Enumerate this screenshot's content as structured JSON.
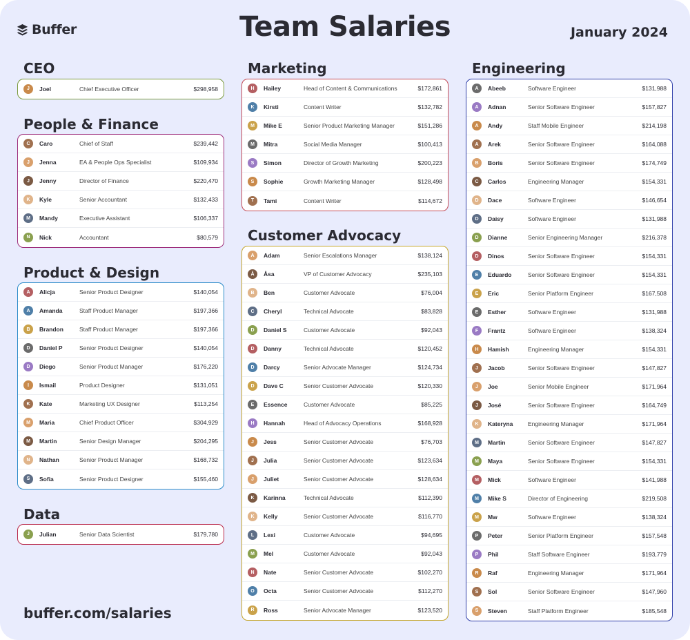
{
  "header": {
    "brand": "Buffer",
    "title": "Team Salaries",
    "date": "January 2024"
  },
  "footer": {
    "url": "buffer.com/salaries"
  },
  "sections": [
    {
      "title": "CEO",
      "color": "#7a9a3e",
      "rows": [
        {
          "name": "Joel",
          "role": "Chief Executive Officer",
          "salary": "$298,958"
        }
      ]
    },
    {
      "title": "People & Finance",
      "color": "#9c2c7a",
      "rows": [
        {
          "name": "Caro",
          "role": "Chief of Staff",
          "salary": "$239,442"
        },
        {
          "name": "Jenna",
          "role": "EA & People Ops Specialist",
          "salary": "$109,934"
        },
        {
          "name": "Jenny",
          "role": "Director of Finance",
          "salary": "$220,470"
        },
        {
          "name": "Kyle",
          "role": "Senior Accountant",
          "salary": "$132,433"
        },
        {
          "name": "Mandy",
          "role": "Executive Assistant",
          "salary": "$106,337"
        },
        {
          "name": "Nick",
          "role": "Accountant",
          "salary": "$80,579"
        }
      ]
    },
    {
      "title": "Product & Design",
      "color": "#2a8ac8",
      "rows": [
        {
          "name": "Alicja",
          "role": "Senior Product Designer",
          "salary": "$140,054"
        },
        {
          "name": "Amanda",
          "role": "Staff Product Manager",
          "salary": "$197,366"
        },
        {
          "name": "Brandon",
          "role": "Staff Product Manager",
          "salary": "$197,366"
        },
        {
          "name": "Daniel P",
          "role": "Senior Product Designer",
          "salary": "$140,054"
        },
        {
          "name": "Diego",
          "role": "Senior Product Manager",
          "salary": "$176,220"
        },
        {
          "name": "Ismail",
          "role": "Product Designer",
          "salary": "$131,051"
        },
        {
          "name": "Kate",
          "role": "Marketing UX Designer",
          "salary": "$113,254"
        },
        {
          "name": "Maria",
          "role": "Chief Product Officer",
          "salary": "$304,929"
        },
        {
          "name": "Martin",
          "role": "Senior Design Manager",
          "salary": "$204,295"
        },
        {
          "name": "Nathan",
          "role": "Senior Product Manager",
          "salary": "$168,732"
        },
        {
          "name": "Sofia",
          "role": "Senior Product Designer",
          "salary": "$155,460"
        }
      ]
    },
    {
      "title": "Data",
      "color": "#b8284a",
      "rows": [
        {
          "name": "Julian",
          "role": "Senior Data Scientist",
          "salary": "$179,780"
        }
      ]
    },
    {
      "title": "Marketing",
      "color": "#c24a55",
      "rows": [
        {
          "name": "Hailey",
          "role": "Head of Content & Communications",
          "salary": "$172,861"
        },
        {
          "name": "Kirsti",
          "role": "Content Writer",
          "salary": "$132,782"
        },
        {
          "name": "Mike E",
          "role": "Senior Product Marketing Manager",
          "salary": "$151,286"
        },
        {
          "name": "Mitra",
          "role": "Social Media Manager",
          "salary": "$100,413"
        },
        {
          "name": "Simon",
          "role": "Director of Growth Marketing",
          "salary": "$200,223"
        },
        {
          "name": "Sophie",
          "role": "Growth Marketing Manager",
          "salary": "$128,498"
        },
        {
          "name": "Tami",
          "role": "Content Writer",
          "salary": "$114,672"
        }
      ]
    },
    {
      "title": "Customer Advocacy",
      "color": "#c4a52a",
      "rows": [
        {
          "name": "Adam",
          "role": "Senior Escalations Manager",
          "salary": "$138,124"
        },
        {
          "name": "Åsa",
          "role": "VP of Customer Advocacy",
          "salary": "$235,103"
        },
        {
          "name": "Ben",
          "role": "Customer Advocate",
          "salary": "$76,004"
        },
        {
          "name": "Cheryl",
          "role": "Technical Advocate",
          "salary": "$83,828"
        },
        {
          "name": "Daniel S",
          "role": "Customer Advocate",
          "salary": "$92,043"
        },
        {
          "name": "Danny",
          "role": "Technical Advocate",
          "salary": "$120,452"
        },
        {
          "name": "Darcy",
          "role": "Senior Advocate Manager",
          "salary": "$124,734"
        },
        {
          "name": "Dave C",
          "role": "Senior Customer Advocate",
          "salary": "$120,330"
        },
        {
          "name": "Essence",
          "role": "Customer Advocate",
          "salary": "$85,225"
        },
        {
          "name": "Hannah",
          "role": "Head of Advocacy Operations",
          "salary": "$168,928"
        },
        {
          "name": "Jess",
          "role": "Senior Customer Advocate",
          "salary": "$76,703"
        },
        {
          "name": "Julia",
          "role": "Senior Customer Advocate",
          "salary": "$123,634"
        },
        {
          "name": "Juliet",
          "role": "Senior Customer Advocate",
          "salary": "$128,634"
        },
        {
          "name": "Karinna",
          "role": "Technical Advocate",
          "salary": "$112,390"
        },
        {
          "name": "Kelly",
          "role": "Senior Customer Advocate",
          "salary": "$116,770"
        },
        {
          "name": "Lexi",
          "role": "Customer Advocate",
          "salary": "$94,695"
        },
        {
          "name": "Mel",
          "role": "Customer Advocate",
          "salary": "$92,043"
        },
        {
          "name": "Nate",
          "role": "Senior Customer Advocate",
          "salary": "$102,270"
        },
        {
          "name": "Octa",
          "role": "Senior Customer Advocate",
          "salary": "$112,270"
        },
        {
          "name": "Ross",
          "role": "Senior Advocate Manager",
          "salary": "$123,520"
        }
      ]
    },
    {
      "title": "Engineering",
      "color": "#2e3da8",
      "rows": [
        {
          "name": "Abeeb",
          "role": "Software Engineer",
          "salary": "$131,988"
        },
        {
          "name": "Adnan",
          "role": "Senior Software Engineer",
          "salary": "$157,827"
        },
        {
          "name": "Andy",
          "role": "Staff Mobile Engineer",
          "salary": "$214,198"
        },
        {
          "name": "Arek",
          "role": "Senior Software Engineer",
          "salary": "$164,088"
        },
        {
          "name": "Boris",
          "role": "Senior Software Engineer",
          "salary": "$174,749"
        },
        {
          "name": "Carlos",
          "role": "Engineering Manager",
          "salary": "$154,331"
        },
        {
          "name": "Dace",
          "role": "Software Engineer",
          "salary": "$146,654"
        },
        {
          "name": "Daisy",
          "role": "Software Engineer",
          "salary": "$131,988"
        },
        {
          "name": "Dianne",
          "role": "Senior Engineering Manager",
          "salary": "$216,378"
        },
        {
          "name": "Dinos",
          "role": "Senior Software Engineer",
          "salary": "$154,331"
        },
        {
          "name": "Eduardo",
          "role": "Senior Software Engineer",
          "salary": "$154,331"
        },
        {
          "name": "Eric",
          "role": "Senior Platform Engineer",
          "salary": "$167,508"
        },
        {
          "name": "Esther",
          "role": "Software Engineer",
          "salary": "$131,988"
        },
        {
          "name": "Frantz",
          "role": "Software Engineer",
          "salary": "$138,324"
        },
        {
          "name": "Hamish",
          "role": "Engineering Manager",
          "salary": "$154,331"
        },
        {
          "name": "Jacob",
          "role": "Senior Software Engineer",
          "salary": "$147,827"
        },
        {
          "name": "Joe",
          "role": "Senior Mobile Engineer",
          "salary": "$171,964"
        },
        {
          "name": "José",
          "role": "Senior Software Engineer",
          "salary": "$164,749"
        },
        {
          "name": "Kateryna",
          "role": "Engineering Manager",
          "salary": "$171,964"
        },
        {
          "name": "Martin",
          "role": "Senior Software Engineer",
          "salary": "$147,827"
        },
        {
          "name": "Maya",
          "role": "Senior Software Engineer",
          "salary": "$154,331"
        },
        {
          "name": "Mick",
          "role": "Software Engineer",
          "salary": "$141,988"
        },
        {
          "name": "Mike S",
          "role": "Director of Engineering",
          "salary": "$219,508"
        },
        {
          "name": "Mw",
          "role": "Software Engineer",
          "salary": "$138,324"
        },
        {
          "name": "Peter",
          "role": "Senior Platform Engineer",
          "salary": "$157,548"
        },
        {
          "name": "Phil",
          "role": "Staff Software Engineer",
          "salary": "$193,779"
        },
        {
          "name": "Raf",
          "role": "Engineering Manager",
          "salary": "$171,964"
        },
        {
          "name": "Sol",
          "role": "Senior Software Engineer",
          "salary": "$147,960"
        },
        {
          "name": "Steven",
          "role": "Staff Platform Engineer",
          "salary": "$185,548"
        }
      ]
    }
  ]
}
